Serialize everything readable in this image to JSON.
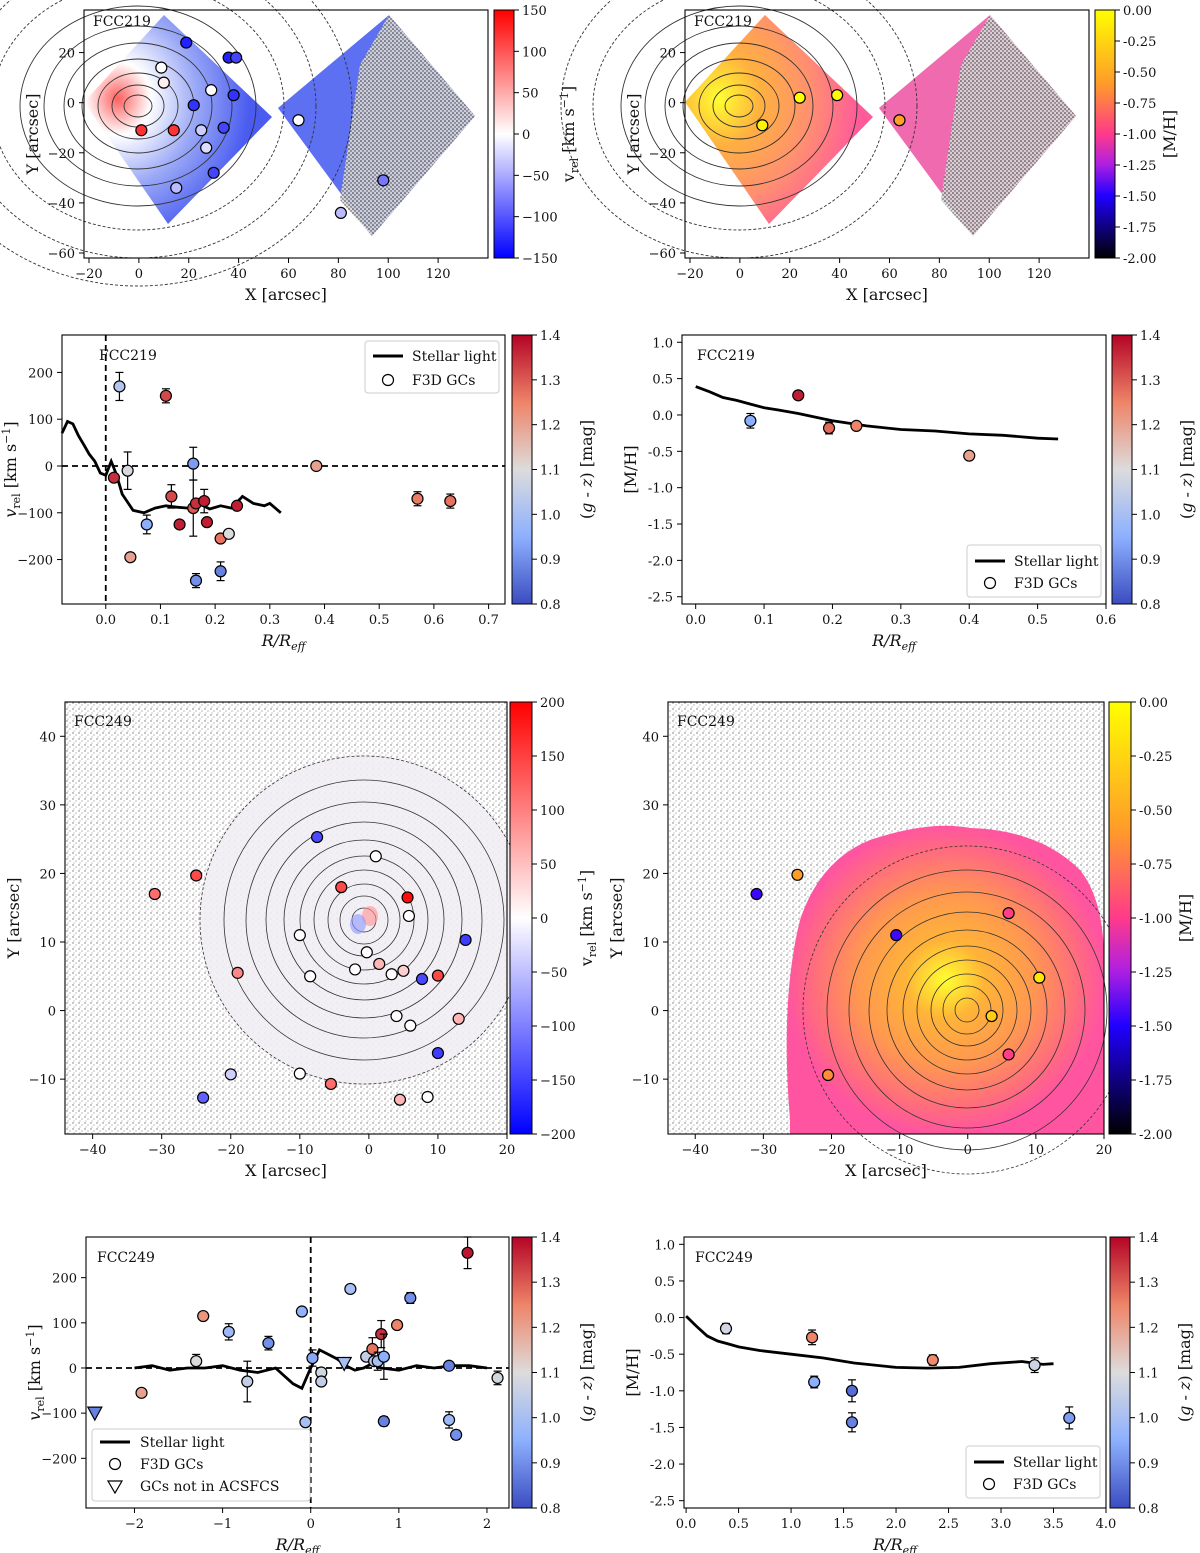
{
  "colorbars": {
    "vrel_219": {
      "label": "v_rel [km s^-1]",
      "ticks": [
        150,
        100,
        50,
        0,
        -50,
        -100,
        -150
      ]
    },
    "mh": {
      "label": "[M/H]",
      "ticks": [
        "0.00",
        "-0.25",
        "-0.50",
        "-0.75",
        "-1.00",
        "-1.25",
        "-1.50",
        "-1.75",
        "-2.00"
      ]
    },
    "gz": {
      "label": "(g - z) [mag]",
      "ticks": [
        "1.4",
        "1.3",
        "1.2",
        "1.1",
        "1.0",
        "0.9",
        "0.8"
      ]
    },
    "vrel_249": {
      "label": "v_rel [km s^-1]",
      "ticks": [
        200,
        150,
        100,
        50,
        0,
        -50,
        -100,
        -150,
        -200
      ]
    }
  },
  "chart_data": [
    {
      "id": "p1",
      "type": "scatter",
      "title": "FCC219",
      "xlabel": "X [arcsec]",
      "ylabel": "Y [arcsec]",
      "xlim": [
        -22,
        140
      ],
      "ylim": [
        -62,
        37
      ],
      "xticks": [
        -20,
        0,
        20,
        40,
        60,
        80,
        100,
        120
      ],
      "yticks": [
        20,
        0,
        -20,
        -40,
        -60
      ],
      "colorbar": "v_rel [km s^-1]",
      "points": [
        {
          "x": 19,
          "y": 24,
          "v": -130
        },
        {
          "x": 36,
          "y": 18,
          "v": -130
        },
        {
          "x": 39,
          "y": 18,
          "v": -110
        },
        {
          "x": 9,
          "y": 14,
          "v": 0
        },
        {
          "x": 10,
          "y": 8,
          "v": 10
        },
        {
          "x": 29,
          "y": 5,
          "v": 0
        },
        {
          "x": 38,
          "y": 3,
          "v": -120
        },
        {
          "x": 22,
          "y": -1,
          "v": -120
        },
        {
          "x": 34,
          "y": -10,
          "v": -110
        },
        {
          "x": 1,
          "y": -11,
          "v": 120
        },
        {
          "x": 14,
          "y": -11,
          "v": 120
        },
        {
          "x": 25,
          "y": -11,
          "v": -30
        },
        {
          "x": 27,
          "y": -18,
          "v": -20
        },
        {
          "x": 30,
          "y": -28,
          "v": -110
        },
        {
          "x": 15,
          "y": -34,
          "v": -40
        },
        {
          "x": 64,
          "y": -7,
          "v": 0
        },
        {
          "x": 98,
          "y": -31,
          "v": -80
        },
        {
          "x": 81,
          "y": -44,
          "v": -40
        }
      ]
    },
    {
      "id": "p2",
      "type": "scatter",
      "title": "FCC219",
      "xlabel": "X [arcsec]",
      "ylabel": "Y [arcsec]",
      "xlim": [
        -22,
        140
      ],
      "ylim": [
        -62,
        37
      ],
      "xticks": [
        -20,
        0,
        20,
        40,
        60,
        80,
        100,
        120
      ],
      "yticks": [
        20,
        0,
        -20,
        -40,
        -60
      ],
      "colorbar": "[M/H]",
      "points": [
        {
          "x": 24,
          "y": 2,
          "mh": 0.27
        },
        {
          "x": 39,
          "y": 3,
          "mh": 0.0
        },
        {
          "x": 9,
          "y": -9,
          "mh": -0.08
        },
        {
          "x": 64,
          "y": -7,
          "mh": -0.56
        }
      ]
    },
    {
      "id": "p3",
      "type": "scatter",
      "title": "FCC219",
      "xlabel": "R/R_eff",
      "ylabel": "v_rel [km s^-1]",
      "xlim": [
        -0.08,
        0.73
      ],
      "ylim": [
        -295,
        280
      ],
      "xticks": [
        0.0,
        0.1,
        0.2,
        0.3,
        0.4,
        0.5,
        0.6,
        0.7
      ],
      "yticks": [
        200,
        100,
        0,
        -100,
        -200
      ],
      "colorbar": "(g - z) [mag]",
      "legend": [
        "Stellar light",
        "F3D GCs"
      ],
      "stellar_line": {
        "x": [
          -0.08,
          -0.07,
          -0.06,
          -0.05,
          -0.04,
          -0.03,
          -0.02,
          -0.01,
          0.0,
          0.01,
          0.02,
          0.03,
          0.05,
          0.07,
          0.09,
          0.11,
          0.13,
          0.15,
          0.17,
          0.19,
          0.21,
          0.23,
          0.25,
          0.27,
          0.29,
          0.3,
          0.32
        ],
        "y": [
          70,
          95,
          90,
          65,
          45,
          25,
          10,
          -15,
          -20,
          10,
          -20,
          -60,
          -95,
          -100,
          -90,
          -85,
          -88,
          -90,
          -80,
          -92,
          -85,
          -90,
          -65,
          -80,
          -85,
          -80,
          -100
        ]
      },
      "points": [
        {
          "x": 0.025,
          "y": 170,
          "err": 30,
          "gz": 1.02
        },
        {
          "x": 0.11,
          "y": 150,
          "err": 15,
          "gz": 1.32
        },
        {
          "x": 0.04,
          "y": -10,
          "err": 40,
          "gz": 1.09
        },
        {
          "x": 0.045,
          "y": -195,
          "err": 0,
          "gz": 1.2
        },
        {
          "x": 0.015,
          "y": -25,
          "err": 0,
          "gz": 1.35
        },
        {
          "x": 0.12,
          "y": -65,
          "err": 25,
          "gz": 1.32
        },
        {
          "x": 0.16,
          "y": 5,
          "err": 35,
          "gz": 0.92
        },
        {
          "x": 0.075,
          "y": -125,
          "err": 20,
          "gz": 0.95
        },
        {
          "x": 0.135,
          "y": -125,
          "err": 0,
          "gz": 1.37
        },
        {
          "x": 0.16,
          "y": -90,
          "err": 60,
          "gz": 1.3
        },
        {
          "x": 0.165,
          "y": -80,
          "err": 0,
          "gz": 1.35
        },
        {
          "x": 0.18,
          "y": -75,
          "err": 25,
          "gz": 1.37
        },
        {
          "x": 0.185,
          "y": -120,
          "err": 0,
          "gz": 1.37
        },
        {
          "x": 0.21,
          "y": -155,
          "err": 0,
          "gz": 1.27
        },
        {
          "x": 0.225,
          "y": -145,
          "err": 0,
          "gz": 1.1
        },
        {
          "x": 0.24,
          "y": -85,
          "err": 0,
          "gz": 1.37
        },
        {
          "x": 0.165,
          "y": -245,
          "err": 15,
          "gz": 0.9
        },
        {
          "x": 0.21,
          "y": -225,
          "err": 20,
          "gz": 0.88
        },
        {
          "x": 0.385,
          "y": 0,
          "err": 0,
          "gz": 1.2
        },
        {
          "x": 0.57,
          "y": -70,
          "err": 15,
          "gz": 1.26
        },
        {
          "x": 0.63,
          "y": -75,
          "err": 15,
          "gz": 1.27
        }
      ]
    },
    {
      "id": "p4",
      "type": "scatter",
      "title": "FCC219",
      "xlabel": "R/R_eff",
      "ylabel": "[M/H]",
      "xlim": [
        -0.02,
        0.6
      ],
      "ylim": [
        -2.6,
        1.1
      ],
      "xticks": [
        0.0,
        0.1,
        0.2,
        0.3,
        0.4,
        0.5,
        0.6
      ],
      "yticks": [
        1.0,
        0.5,
        0.0,
        -0.5,
        -1.0,
        -1.5,
        -2.0,
        -2.5
      ],
      "colorbar": "(g - z) [mag]",
      "legend": [
        "Stellar light",
        "F3D GCs"
      ],
      "stellar_line": {
        "x": [
          0.0,
          0.02,
          0.04,
          0.06,
          0.08,
          0.1,
          0.12,
          0.15,
          0.18,
          0.2,
          0.25,
          0.3,
          0.35,
          0.4,
          0.45,
          0.5,
          0.53
        ],
        "y": [
          0.39,
          0.32,
          0.24,
          0.2,
          0.15,
          0.1,
          0.07,
          0.02,
          -0.04,
          -0.08,
          -0.15,
          -0.2,
          -0.22,
          -0.26,
          -0.28,
          -0.32,
          -0.33
        ]
      },
      "points": [
        {
          "x": 0.08,
          "y": -0.08,
          "err": 0.1,
          "gz": 0.95
        },
        {
          "x": 0.15,
          "y": 0.27,
          "err": 0,
          "gz": 1.37
        },
        {
          "x": 0.195,
          "y": -0.18,
          "err": 0.08,
          "gz": 1.28
        },
        {
          "x": 0.235,
          "y": -0.15,
          "err": 0,
          "gz": 1.25
        },
        {
          "x": 0.4,
          "y": -0.56,
          "err": 0,
          "gz": 1.2
        }
      ]
    },
    {
      "id": "p5",
      "type": "scatter",
      "title": "FCC249",
      "xlabel": "X [arcsec]",
      "ylabel": "Y [arcsec]",
      "xlim": [
        -44,
        20
      ],
      "ylim": [
        -18,
        45
      ],
      "xticks": [
        -40,
        -30,
        -20,
        -10,
        0,
        10,
        20
      ],
      "yticks": [
        40,
        30,
        20,
        10,
        0,
        -10
      ],
      "colorbar": "v_rel [km s^-1]",
      "points": [
        {
          "x": -31,
          "y": 17,
          "v": 120
        },
        {
          "x": -25,
          "y": 19.7,
          "v": 150
        },
        {
          "x": -19,
          "y": 5.5,
          "v": 100
        },
        {
          "x": -7.5,
          "y": 25.3,
          "v": -150
        },
        {
          "x": -10,
          "y": 11,
          "v": 0
        },
        {
          "x": -8.5,
          "y": 5,
          "v": 0
        },
        {
          "x": -4,
          "y": 18,
          "v": 150
        },
        {
          "x": -2,
          "y": 6,
          "v": 0
        },
        {
          "x": -0.3,
          "y": 8.5,
          "v": 0
        },
        {
          "x": 1,
          "y": 22.5,
          "v": 0
        },
        {
          "x": 1.5,
          "y": 6.8,
          "v": 60
        },
        {
          "x": 3.3,
          "y": 5.3,
          "v": 0
        },
        {
          "x": 5.6,
          "y": 16.5,
          "v": 200
        },
        {
          "x": 5.8,
          "y": 13.8,
          "v": 0
        },
        {
          "x": 5,
          "y": 5.8,
          "v": 40
        },
        {
          "x": 7.7,
          "y": 4.6,
          "v": -150
        },
        {
          "x": 10,
          "y": 5.1,
          "v": 150
        },
        {
          "x": 14,
          "y": 10.3,
          "v": -160
        },
        {
          "x": 4,
          "y": -0.8,
          "v": 0
        },
        {
          "x": 6,
          "y": -2.2,
          "v": 0
        },
        {
          "x": 13,
          "y": -1.2,
          "v": 60
        },
        {
          "x": 10,
          "y": -6.2,
          "v": -160
        },
        {
          "x": -10,
          "y": -9.2,
          "v": 0
        },
        {
          "x": -5.5,
          "y": -10.7,
          "v": 120
        },
        {
          "x": -20,
          "y": -9.3,
          "v": -40
        },
        {
          "x": -24,
          "y": -12.7,
          "v": -130
        },
        {
          "x": 4.5,
          "y": -13,
          "v": 60
        },
        {
          "x": 8.5,
          "y": -12.6,
          "v": 0
        }
      ]
    },
    {
      "id": "p6",
      "type": "scatter",
      "title": "FCC249",
      "xlabel": "X [arcsec]",
      "ylabel": "Y [arcsec]",
      "xlim": [
        -44,
        20
      ],
      "ylim": [
        -18,
        45
      ],
      "xticks": [
        -40,
        -30,
        -20,
        -10,
        0,
        10,
        20
      ],
      "yticks": [
        40,
        30,
        20,
        10,
        0,
        -10
      ],
      "colorbar": "[M/H]",
      "points": [
        {
          "x": -31,
          "y": 17,
          "mh": -1.45
        },
        {
          "x": -25,
          "y": 19.8,
          "mh": -0.58
        },
        {
          "x": -10.5,
          "y": 11,
          "mh": -1.44
        },
        {
          "x": 6,
          "y": 14.2,
          "mh": -0.98
        },
        {
          "x": 10.5,
          "y": 4.8,
          "mh": -0.16
        },
        {
          "x": 3.5,
          "y": -0.8,
          "mh": -0.3
        },
        {
          "x": 6,
          "y": -6.4,
          "mh": -0.98
        },
        {
          "x": -20.5,
          "y": -9.4,
          "mh": -0.65
        }
      ]
    },
    {
      "id": "p7",
      "type": "scatter",
      "title": "FCC249",
      "xlabel": "R/R_eff",
      "ylabel": "v_rel [km s^-1]",
      "xlim": [
        -2.55,
        2.25
      ],
      "ylim": [
        -310,
        290
      ],
      "xticks": [
        -2,
        -1,
        0,
        1,
        2
      ],
      "yticks": [
        200,
        100,
        0,
        -100,
        -200
      ],
      "colorbar": "(g - z) [mag]",
      "legend": [
        "Stellar light",
        "F3D GCs",
        "GCs not in ACSFCS"
      ],
      "stellar_line": {
        "x": [
          -2.0,
          -1.8,
          -1.6,
          -1.4,
          -1.2,
          -1.0,
          -0.8,
          -0.6,
          -0.4,
          -0.2,
          -0.1,
          0.0,
          0.1,
          0.2,
          0.3,
          0.4,
          0.5,
          0.6,
          0.7,
          0.8,
          1.0,
          1.2,
          1.4,
          1.6,
          1.8,
          2.0
        ],
        "y": [
          0,
          5,
          -5,
          0,
          0,
          5,
          -5,
          -10,
          0,
          -35,
          -45,
          0,
          40,
          30,
          20,
          5,
          -5,
          0,
          10,
          0,
          -5,
          5,
          0,
          5,
          5,
          0
        ]
      },
      "points": [
        {
          "x": -1.92,
          "y": -55,
          "err": 0,
          "gz": 1.2
        },
        {
          "x": -1.3,
          "y": 15,
          "err": 15,
          "gz": 1.1
        },
        {
          "x": -1.22,
          "y": 115,
          "err": 8,
          "gz": 1.22
        },
        {
          "x": -0.93,
          "y": 80,
          "err": 18,
          "gz": 0.98
        },
        {
          "x": -0.72,
          "y": -30,
          "err": 45,
          "gz": 1.05
        },
        {
          "x": -0.48,
          "y": 55,
          "err": 15,
          "gz": 0.9
        },
        {
          "x": -0.1,
          "y": 125,
          "err": 0,
          "gz": 0.96
        },
        {
          "x": -0.06,
          "y": -120,
          "err": 0,
          "gz": 1.0
        },
        {
          "x": 0.02,
          "y": 22,
          "err": 18,
          "gz": 0.94
        },
        {
          "x": 0.12,
          "y": -10,
          "err": 0,
          "gz": 1.08
        },
        {
          "x": 0.12,
          "y": -30,
          "err": 0,
          "gz": 1.05
        },
        {
          "x": 0.45,
          "y": 175,
          "err": 0,
          "gz": 1.0
        },
        {
          "x": 0.63,
          "y": 25,
          "err": 0,
          "gz": 1.05
        },
        {
          "x": 0.7,
          "y": 42,
          "err": 25,
          "gz": 1.27
        },
        {
          "x": 0.72,
          "y": 15,
          "err": 0,
          "gz": 1.05
        },
        {
          "x": 0.76,
          "y": 15,
          "err": 20,
          "gz": 1.0
        },
        {
          "x": 0.8,
          "y": 75,
          "err": 30,
          "gz": 1.35
        },
        {
          "x": 0.83,
          "y": 25,
          "err": 50,
          "gz": 0.95
        },
        {
          "x": 0.83,
          "y": -118,
          "err": 10,
          "gz": 0.88
        },
        {
          "x": 0.98,
          "y": 95,
          "err": 0,
          "gz": 1.25
        },
        {
          "x": 1.13,
          "y": 155,
          "err": 12,
          "gz": 0.9
        },
        {
          "x": 1.57,
          "y": 5,
          "err": 8,
          "gz": 0.88
        },
        {
          "x": 1.57,
          "y": -115,
          "err": 18,
          "gz": 0.98
        },
        {
          "x": 1.65,
          "y": -148,
          "err": 10,
          "gz": 0.9
        },
        {
          "x": 1.78,
          "y": 255,
          "err": 35,
          "gz": 1.38
        },
        {
          "x": 2.12,
          "y": -22,
          "err": 15,
          "gz": 1.08
        }
      ],
      "triangles": [
        {
          "x": -2.45,
          "y": -100,
          "gz": 0.88
        },
        {
          "x": 0.38,
          "y": 10,
          "gz": 1.0
        }
      ]
    },
    {
      "id": "p8",
      "type": "scatter",
      "title": "FCC249",
      "xlabel": "R/R_eff",
      "ylabel": "[M/H]",
      "xlim": [
        -0.02,
        4.0
      ],
      "ylim": [
        -2.6,
        1.1
      ],
      "xticks": [
        0.0,
        0.5,
        1.0,
        1.5,
        2.0,
        2.5,
        3.0,
        3.5,
        4.0
      ],
      "yticks": [
        1.0,
        0.5,
        0.0,
        -0.5,
        -1.0,
        -1.5,
        -2.0,
        -2.5
      ],
      "colorbar": "(g - z) [mag]",
      "legend": [
        "Stellar light",
        "F3D GCs"
      ],
      "stellar_line": {
        "x": [
          0.0,
          0.1,
          0.2,
          0.3,
          0.4,
          0.5,
          0.7,
          1.0,
          1.3,
          1.6,
          2.0,
          2.3,
          2.6,
          2.9,
          3.2,
          3.4,
          3.5
        ],
        "y": [
          0.02,
          -0.12,
          -0.25,
          -0.32,
          -0.36,
          -0.4,
          -0.45,
          -0.5,
          -0.55,
          -0.62,
          -0.68,
          -0.69,
          -0.68,
          -0.63,
          -0.6,
          -0.64,
          -0.63
        ]
      },
      "points": [
        {
          "x": 0.38,
          "y": -0.15,
          "err": 0.07,
          "gz": 1.08
        },
        {
          "x": 1.2,
          "y": -0.27,
          "err": 0.1,
          "gz": 1.25
        },
        {
          "x": 1.22,
          "y": -0.88,
          "err": 0.08,
          "gz": 0.95
        },
        {
          "x": 1.58,
          "y": -1.0,
          "err": 0.15,
          "gz": 0.85
        },
        {
          "x": 1.58,
          "y": -1.43,
          "err": 0.13,
          "gz": 0.88
        },
        {
          "x": 2.35,
          "y": -0.58,
          "err": 0.07,
          "gz": 1.24
        },
        {
          "x": 3.32,
          "y": -0.65,
          "err": 0.1,
          "gz": 1.07
        },
        {
          "x": 3.65,
          "y": -1.37,
          "err": 0.15,
          "gz": 0.92
        }
      ]
    }
  ]
}
